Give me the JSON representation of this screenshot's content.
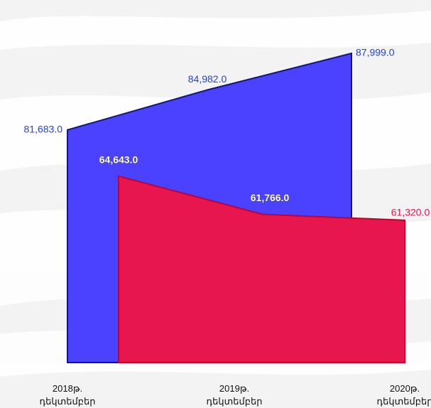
{
  "chart_data": {
    "type": "area",
    "categories": [
      "2018թ.\nդեկտեմբեր",
      "2019թ.\nդեկտեմբեր",
      "2020թ.\nդեկտեմբեր"
    ],
    "ylim": [
      62500,
      88000
    ],
    "y2lim": [
      50600,
      73900
    ],
    "series": [
      {
        "name": null,
        "color": "#4a42ff",
        "values": [
          81683,
          84982,
          87999
        ],
        "value_labels": [
          "81,683.0",
          "84,982.0",
          "87,999.0"
        ]
      },
      {
        "name": null,
        "color": "#e8164f",
        "axis": "y2",
        "values": [
          64643,
          61766,
          61320
        ],
        "value_labels": [
          "64,643.0",
          "61,766.0",
          "61,320.0"
        ]
      }
    ]
  }
}
